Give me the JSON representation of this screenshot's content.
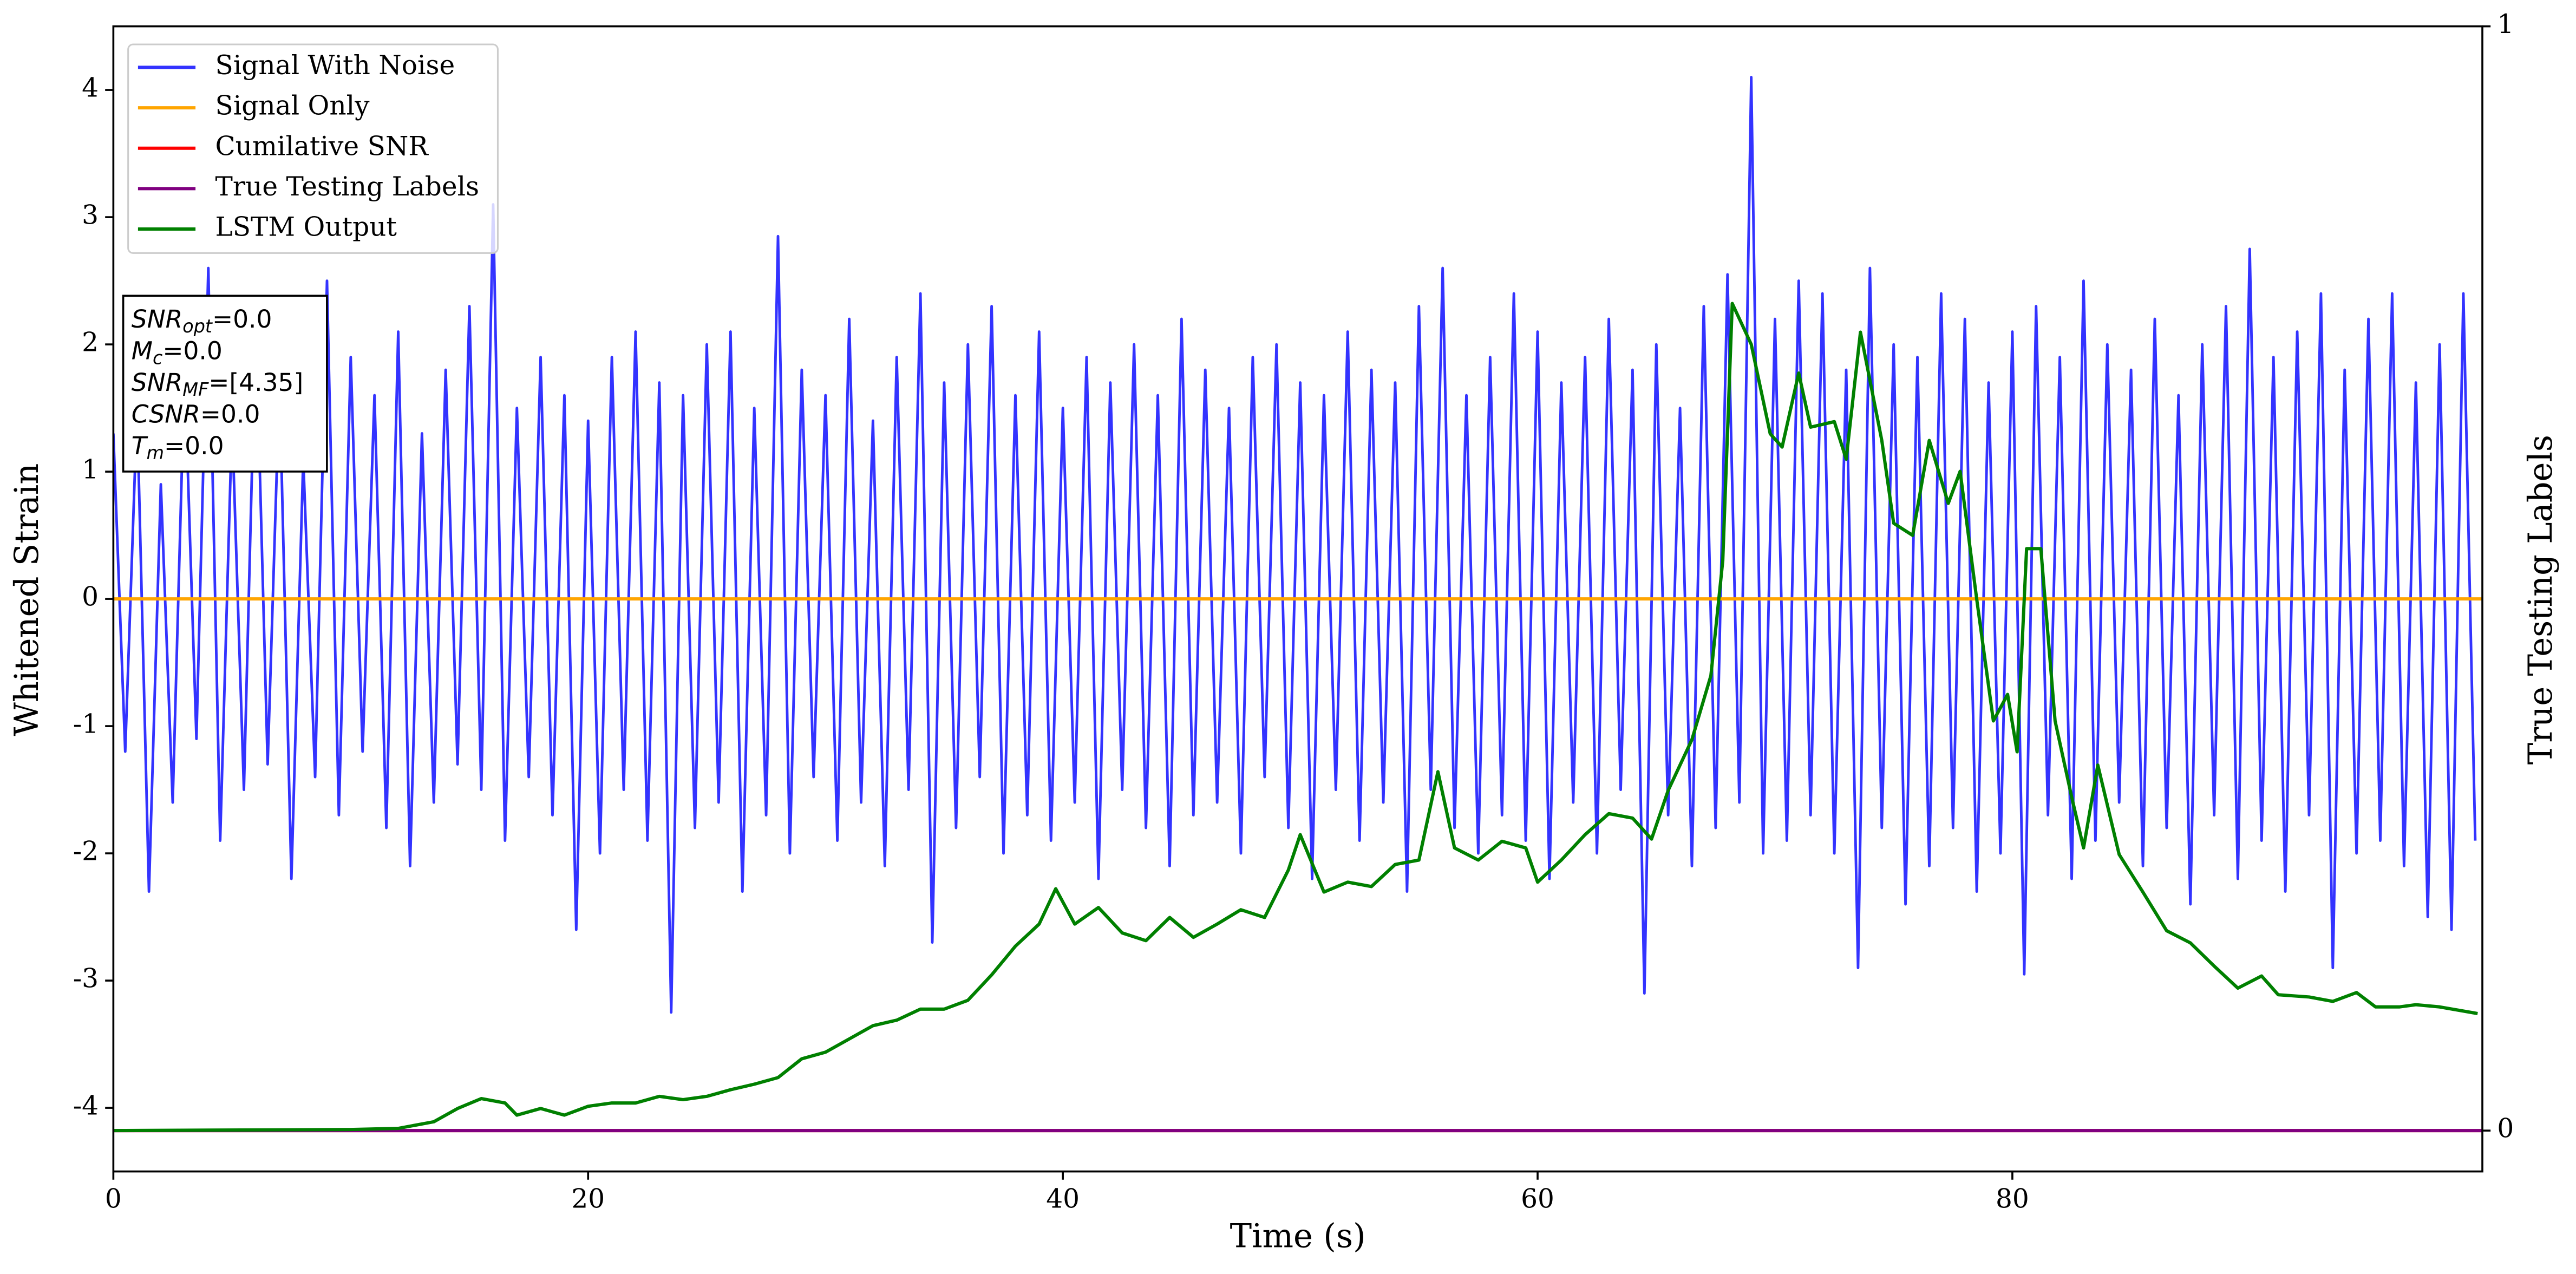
{
  "chart_data": {
    "type": "line",
    "xlabel": "Time (s)",
    "ylabel": "Whitened Strain",
    "y2label": "True Testing Labels",
    "xlim": [
      0,
      99.8
    ],
    "xticks": [
      0,
      20,
      40,
      60,
      80
    ],
    "ylim": [
      -4.5,
      4.5
    ],
    "yticks": [
      -4,
      -3,
      -2,
      -1,
      0,
      1,
      2,
      3,
      4
    ],
    "y2lim": [
      -0.037,
      1
    ],
    "y2ticks": [
      0,
      1
    ],
    "legend": "upper left",
    "series": [
      {
        "name": "Signal With Noise",
        "color": "#3333ff",
        "x": [
          0,
          0.5,
          1,
          1.5,
          2,
          2.5,
          3,
          3.5,
          4,
          4.5,
          5,
          5.5,
          6,
          6.5,
          7,
          7.5,
          8,
          8.5,
          9,
          9.5,
          10,
          10.5,
          11,
          11.5,
          12,
          12.5,
          13,
          13.5,
          14,
          14.5,
          15,
          15.5,
          16,
          16.5,
          17,
          17.5,
          18,
          18.5,
          19,
          19.5,
          20,
          20.5,
          21,
          21.5,
          22,
          22.5,
          23,
          23.5,
          24,
          24.5,
          25,
          25.5,
          26,
          26.5,
          27,
          27.5,
          28,
          28.5,
          29,
          29.5,
          30,
          30.5,
          31,
          31.5,
          32,
          32.5,
          33,
          33.5,
          34,
          34.5,
          35,
          35.5,
          36,
          36.5,
          37,
          37.5,
          38,
          38.5,
          39,
          39.5,
          40,
          40.5,
          41,
          41.5,
          42,
          42.5,
          43,
          43.5,
          44,
          44.5,
          45,
          45.5,
          46,
          46.5,
          47,
          47.5,
          48,
          48.5,
          49,
          49.5,
          50,
          50.5,
          51,
          51.5,
          52,
          52.5,
          53,
          53.5,
          54,
          54.5,
          55,
          55.5,
          56,
          56.5,
          57,
          57.5,
          58,
          58.5,
          59,
          59.5,
          60,
          60.5,
          61,
          61.5,
          62,
          62.5,
          63,
          63.5,
          64,
          64.5,
          65,
          65.5,
          66,
          66.5,
          67,
          67.5,
          68,
          68.5,
          69,
          69.5,
          70,
          70.5,
          71,
          71.5,
          72,
          72.5,
          73,
          73.5,
          74,
          74.5,
          75,
          75.5,
          76,
          76.5,
          77,
          77.5,
          78,
          78.5,
          79,
          79.5,
          80,
          80.5,
          81,
          81.5,
          82,
          82.5,
          83,
          83.5,
          84,
          84.5,
          85,
          85.5,
          86,
          86.5,
          87,
          87.5,
          88,
          88.5,
          89,
          89.5,
          90,
          90.5,
          91,
          91.5,
          92,
          92.5,
          93,
          93.5,
          94,
          94.5,
          95,
          95.5,
          96,
          96.5,
          97,
          97.5,
          98,
          98.5,
          99,
          99.5
        ],
        "values": [
          1.3,
          -1.2,
          1.5,
          -2.3,
          0.9,
          -1.6,
          1.8,
          -1.1,
          2.6,
          -1.9,
          1.4,
          -1.5,
          2.2,
          -1.3,
          1.7,
          -2.2,
          1.1,
          -1.4,
          2.5,
          -1.7,
          1.9,
          -1.2,
          1.6,
          -1.8,
          2.1,
          -2.1,
          1.3,
          -1.6,
          1.8,
          -1.3,
          2.3,
          -1.5,
          3.1,
          -1.9,
          1.5,
          -1.4,
          1.9,
          -1.7,
          1.6,
          -2.6,
          1.4,
          -2.0,
          1.9,
          -1.5,
          2.1,
          -1.9,
          1.7,
          -3.25,
          1.6,
          -1.8,
          2.0,
          -1.6,
          2.1,
          -2.3,
          1.5,
          -1.7,
          2.85,
          -2.0,
          1.8,
          -1.4,
          1.6,
          -1.9,
          2.2,
          -1.6,
          1.4,
          -2.1,
          1.9,
          -1.5,
          2.4,
          -2.7,
          1.7,
          -1.8,
          2.0,
          -1.4,
          2.3,
          -2.0,
          1.6,
          -1.7,
          2.1,
          -1.9,
          1.5,
          -1.6,
          1.9,
          -2.2,
          1.7,
          -1.5,
          2.0,
          -1.8,
          1.6,
          -2.1,
          2.2,
          -1.7,
          1.8,
          -1.6,
          1.5,
          -2.0,
          1.9,
          -1.4,
          2.0,
          -1.8,
          1.7,
          -2.2,
          1.6,
          -1.5,
          2.1,
          -1.9,
          1.8,
          -1.6,
          1.7,
          -2.3,
          2.3,
          -1.5,
          2.6,
          -1.8,
          1.6,
          -2.0,
          1.9,
          -1.7,
          2.4,
          -1.9,
          2.1,
          -2.2,
          1.7,
          -1.6,
          1.9,
          -2.0,
          2.2,
          -1.5,
          1.8,
          -3.1,
          2.0,
          -1.7,
          1.5,
          -2.1,
          2.3,
          -1.8,
          2.55,
          -1.6,
          4.1,
          -2.0,
          2.2,
          -1.9,
          2.5,
          -1.7,
          2.4,
          -2.0,
          1.8,
          -2.9,
          2.6,
          -1.8,
          2.0,
          -2.4,
          1.9,
          -2.1,
          2.4,
          -1.8,
          2.2,
          -2.3,
          1.7,
          -2.0,
          2.1,
          -2.95,
          2.3,
          -1.7,
          1.9,
          -2.2,
          2.5,
          -1.9,
          2.0,
          -1.6,
          1.8,
          -2.1,
          2.2,
          -1.8,
          1.6,
          -2.4,
          2.0,
          -1.7,
          2.3,
          -2.2,
          2.75,
          -1.9,
          1.9,
          -2.3,
          2.1,
          -1.7,
          2.4,
          -2.9,
          1.8,
          -2.0,
          2.2,
          -1.9,
          2.4,
          -2.1,
          1.7,
          -2.5,
          2.0,
          -2.6,
          2.4,
          -1.9
        ]
      },
      {
        "name": "Signal Only",
        "color": "#ffa500",
        "x": [
          0,
          99.8
        ],
        "values": [
          0,
          0
        ]
      },
      {
        "name": "Cumilative SNR",
        "color": "#ff0000",
        "axis": "y2",
        "x": [
          0,
          99.8
        ],
        "values": [
          0,
          0
        ]
      },
      {
        "name": "True Testing Labels",
        "color": "#800080",
        "axis": "y2",
        "x": [
          0,
          99.8
        ],
        "values": [
          0,
          0
        ]
      },
      {
        "name": "LSTM Output",
        "color": "#008000",
        "axis": "y2",
        "x": [
          0,
          10,
          12,
          13.5,
          14.5,
          15.5,
          16.5,
          17,
          18,
          19,
          20,
          21,
          22,
          23,
          24,
          25,
          26,
          27,
          28,
          29,
          30,
          31,
          32,
          33,
          34,
          35,
          36,
          37,
          38,
          39,
          39.7,
          40.5,
          41.5,
          42.5,
          43.5,
          44.5,
          45.5,
          46.5,
          47.5,
          48.5,
          49.5,
          50,
          51,
          52,
          53,
          54,
          55,
          55.8,
          56.5,
          57.5,
          58.5,
          59.5,
          60,
          61,
          62,
          63,
          64,
          64.8,
          65.5,
          66.5,
          67.3,
          67.8,
          68.2,
          69,
          69.8,
          70.3,
          71,
          71.5,
          72.5,
          73,
          73.6,
          74.5,
          75,
          75.8,
          76.5,
          77.3,
          77.8,
          78.5,
          79.2,
          79.8,
          80.2,
          80.6,
          81.2,
          81.8,
          82.5,
          83,
          83.6,
          84.5,
          85.5,
          86.5,
          87.5,
          88.5,
          89.5,
          90.5,
          91.2,
          92.5,
          93.5,
          94.5,
          95.3,
          96.3,
          97,
          98,
          99.6
        ],
        "values": [
          0,
          0.001,
          0.002,
          0.008,
          0.02,
          0.029,
          0.025,
          0.014,
          0.02,
          0.014,
          0.022,
          0.025,
          0.025,
          0.031,
          0.028,
          0.031,
          0.037,
          0.042,
          0.048,
          0.065,
          0.071,
          0.083,
          0.095,
          0.1,
          0.11,
          0.11,
          0.118,
          0.141,
          0.167,
          0.187,
          0.219,
          0.187,
          0.202,
          0.179,
          0.172,
          0.193,
          0.175,
          0.187,
          0.2,
          0.193,
          0.236,
          0.268,
          0.216,
          0.225,
          0.221,
          0.241,
          0.245,
          0.325,
          0.256,
          0.245,
          0.262,
          0.256,
          0.225,
          0.245,
          0.268,
          0.287,
          0.283,
          0.264,
          0.308,
          0.354,
          0.412,
          0.516,
          0.749,
          0.712,
          0.631,
          0.619,
          0.686,
          0.637,
          0.642,
          0.608,
          0.723,
          0.625,
          0.55,
          0.539,
          0.625,
          0.568,
          0.597,
          0.481,
          0.371,
          0.395,
          0.343,
          0.527,
          0.527,
          0.371,
          0.302,
          0.256,
          0.331,
          0.25,
          0.216,
          0.181,
          0.17,
          0.149,
          0.129,
          0.14,
          0.123,
          0.121,
          0.117,
          0.125,
          0.112,
          0.112,
          0.114,
          0.112,
          0.106
        ]
      }
    ],
    "annotations": [
      {
        "symbol": "SNR",
        "subscript": "opt",
        "text": "=0.0"
      },
      {
        "symbol": "M",
        "subscript": "c",
        "text": "=0.0"
      },
      {
        "symbol": "SNR",
        "subscript": "MF",
        "text": "=[4.35]"
      },
      {
        "symbol": "CSNR",
        "text": "=0.0"
      },
      {
        "symbol": "T",
        "subscript": "m",
        "text": "=0.0"
      }
    ]
  }
}
